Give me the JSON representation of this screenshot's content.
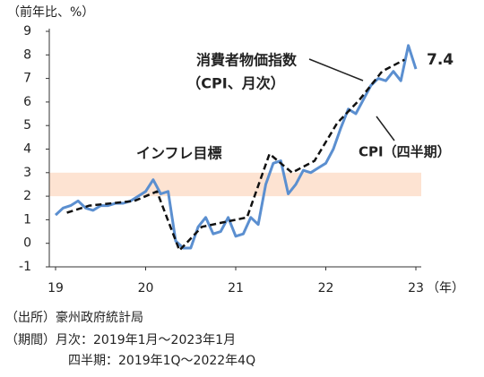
{
  "chart_data": {
    "type": "line",
    "y_axis_label": "（前年比、%）",
    "x_axis_label": "（年）",
    "xlim": [
      19,
      23
    ],
    "xticks": [
      19,
      20,
      21,
      22,
      23
    ],
    "ylim": [
      -1,
      9
    ],
    "yticks": [
      -1,
      0,
      1,
      2,
      3,
      4,
      5,
      6,
      7,
      8,
      9
    ],
    "band": {
      "label": "インフレ目標",
      "range": [
        2,
        3
      ],
      "color": "#fde3d2",
      "label_color": "#f4a460"
    },
    "series": [
      {
        "name": [
          "消費者物価指数",
          "（CPI、月次）"
        ],
        "color": "#5b8fd0",
        "frequency": "monthly",
        "values": [
          1.2,
          1.5,
          1.6,
          1.8,
          1.5,
          1.4,
          1.6,
          1.6,
          1.7,
          1.7,
          1.8,
          2.0,
          2.2,
          2.7,
          2.1,
          2.2,
          0.1,
          -0.2,
          -0.2,
          0.7,
          1.1,
          0.4,
          0.5,
          1.1,
          0.3,
          0.4,
          1.1,
          0.8,
          2.5,
          3.4,
          3.5,
          2.1,
          2.5,
          3.1,
          3.0,
          3.2,
          3.4,
          4.0,
          4.9,
          5.7,
          5.5,
          6.1,
          6.7,
          7.0,
          6.9,
          7.3,
          6.9,
          8.4,
          7.4
        ]
      },
      {
        "name": "CPI（四半期）",
        "color": "#111111",
        "frequency": "quarterly",
        "dashed": true,
        "values": [
          1.3,
          1.6,
          1.7,
          1.8,
          2.2,
          -0.3,
          0.7,
          0.9,
          1.1,
          3.8,
          3.0,
          3.5,
          5.1,
          6.1,
          7.3,
          7.8
        ]
      }
    ],
    "notes": [
      "（出所）豪州政府統計局",
      "（期間）月次：2019年1月～2023年1月",
      "四半期：2019年1Q～2022年4Q"
    ]
  }
}
